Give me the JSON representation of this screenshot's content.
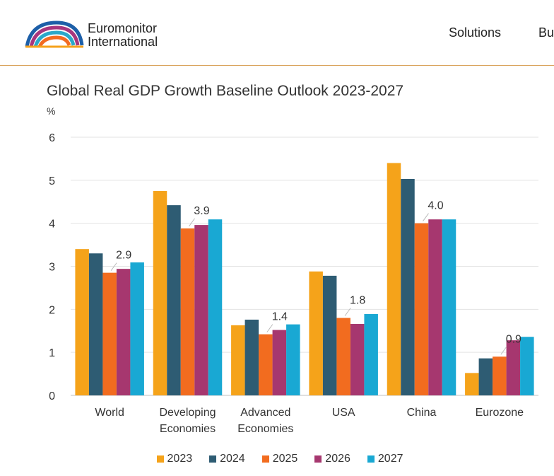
{
  "header": {
    "logo_line1": "Euromonitor",
    "logo_line2": "International",
    "nav": [
      "Solutions",
      "Bu"
    ]
  },
  "colors": {
    "logo_arcs": [
      "#f5a21b",
      "#f26b21",
      "#2aa8c9",
      "#a7367e",
      "#1d5fa8"
    ]
  },
  "chart_data": {
    "type": "bar",
    "title": "Global Real GDP Growth Baseline Outlook 2023-2027",
    "ylabel": "%",
    "ylim": [
      0,
      6
    ],
    "yticks": [
      0,
      1,
      2,
      3,
      4,
      5,
      6
    ],
    "grid": true,
    "legend_position": "bottom",
    "categories": [
      "World",
      "Developing\nEconomies",
      "Advanced\nEconomies",
      "USA",
      "China",
      "Eurozone"
    ],
    "series": [
      {
        "name": "2023",
        "color": "#f5a31a",
        "values": [
          3.4,
          4.75,
          1.63,
          2.88,
          5.4,
          0.52
        ]
      },
      {
        "name": "2024",
        "color": "#2e5c73",
        "values": [
          3.3,
          4.42,
          1.76,
          2.78,
          5.03,
          0.86
        ]
      },
      {
        "name": "2025",
        "color": "#f26c1f",
        "values": [
          2.85,
          3.88,
          1.42,
          1.8,
          4.0,
          0.9
        ]
      },
      {
        "name": "2026",
        "color": "#a6376f",
        "values": [
          2.94,
          3.96,
          1.52,
          1.66,
          4.09,
          1.28
        ]
      },
      {
        "name": "2027",
        "color": "#19a8d3",
        "values": [
          3.09,
          4.09,
          1.65,
          1.89,
          4.09,
          1.36
        ]
      }
    ],
    "annotations": [
      "2.9",
      "3.9",
      "1.4",
      "1.8",
      "4.0",
      "0.9"
    ]
  }
}
